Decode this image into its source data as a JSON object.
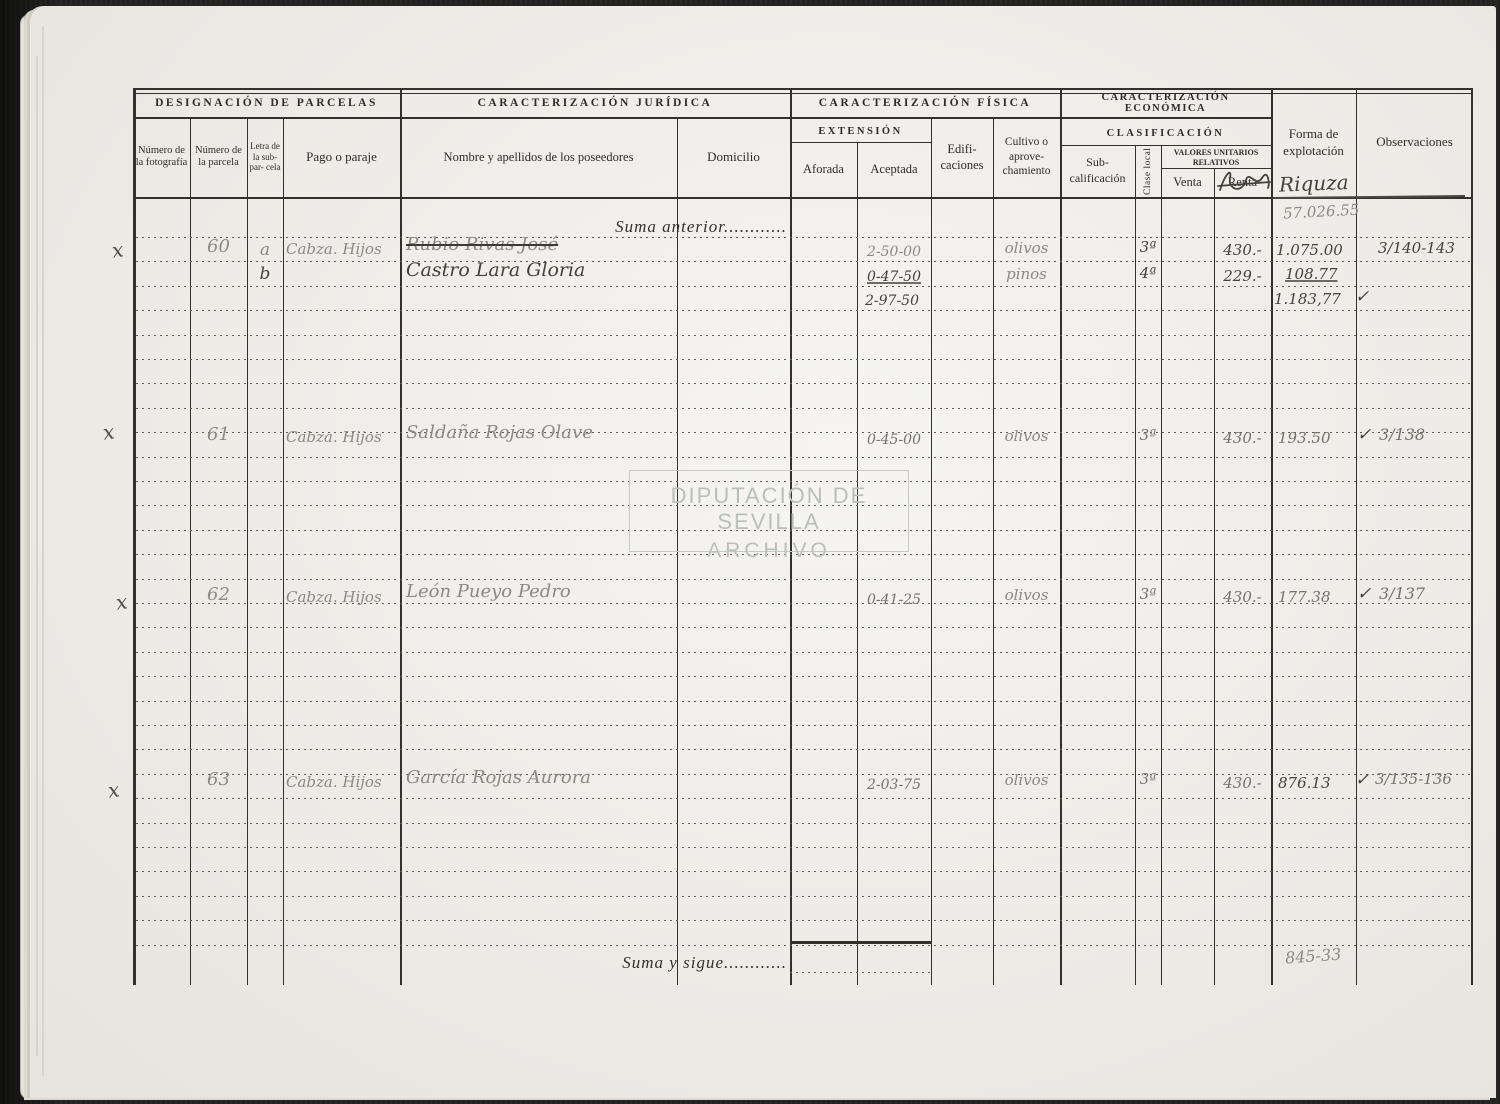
{
  "watermark": {
    "line1": "DIPUTACIÓN DE SEVILLA",
    "line2": "ARCHIVO"
  },
  "header": {
    "designacion": "DESIGNACIÓN DE PARCELAS",
    "juridica": "CARACTERIZACIÓN JURÍDICA",
    "fisica": "CARACTERIZACIÓN FÍSICA",
    "economica": "CARACTERIZACIÓN ECONÓMICA",
    "num_foto": "Número de la fotografía",
    "num_parcela": "Número de la parcela",
    "letra": "Letra de la sub- par- cela",
    "pago": "Pago o paraje",
    "nombre": "Nombre y apellidos de los poseedores",
    "domicilio": "Domicilio",
    "extension": "EXTENSIÓN",
    "aforada": "Aforada",
    "aceptada": "Aceptada",
    "edificaciones": "Edifi- caciones",
    "cultivo": "Cultivo o aprove- chamiento",
    "clasificacion": "CLASIFICACIÓN",
    "subcalificacion": "Sub- calificación",
    "clase_local": "Clase local",
    "valores_1": "VALORES UNITARIOS",
    "valores_2": "RELATIVOS",
    "venta": "Venta",
    "renta": "Renta",
    "forma": "Forma de explotación",
    "observaciones": "Observaciones",
    "forma_handwritten": "Riquza"
  },
  "sums": {
    "anterior_label": "Suma anterior",
    "anterior_leader": "............",
    "anterior_value": "57.026.55",
    "sigue_label": "Suma y sigue",
    "sigue_leader": "............",
    "bottom_note": "845-33"
  },
  "rows": [
    {
      "mark": "x",
      "parcela": "60",
      "letra": "a",
      "pago": "Cabza. Hijos",
      "nombre": "Rubio Rivas José",
      "aceptada": "2-50-00",
      "cultivo": "olivos",
      "clase": "3ª",
      "renta": "430.-",
      "forma": "1.075.00",
      "obs": "3/140-143"
    },
    {
      "letra": "b",
      "nombre": "Castro Lara Gloria",
      "aceptada": "0-47-50",
      "cultivo": "pinos",
      "clase": "4ª",
      "renta": "229.-",
      "forma": "108.77"
    },
    {
      "aceptada": "2-97-50",
      "forma": "1.183,77",
      "check": "✓"
    },
    {
      "mark": "x",
      "parcela": "61",
      "pago": "Cabza. Hijos",
      "nombre": "Saldaña Rojas Olave",
      "aceptada": "0-45-00",
      "cultivo": "olivos",
      "clase": "3ª",
      "renta": "430.-",
      "forma": "193.50",
      "check": "✓",
      "obs": "3/138"
    },
    {
      "mark": "x",
      "parcela": "62",
      "pago": "Cabza. Hijos",
      "nombre": "León Pueyo Pedro",
      "aceptada": "0-41-25",
      "cultivo": "olivos",
      "clase": "3ª",
      "renta": "430.-",
      "forma": "177.38",
      "check": "✓",
      "obs": "3/137"
    },
    {
      "mark": "x",
      "parcela": "63",
      "pago": "Cabza. Hijos",
      "nombre": "García Rojas Aurora",
      "aceptada": "2-03-75",
      "cultivo": "olivos",
      "clase": "3ª",
      "renta": "430.-",
      "forma": "876.13",
      "check": "✓",
      "obs": "3/135-136"
    }
  ]
}
